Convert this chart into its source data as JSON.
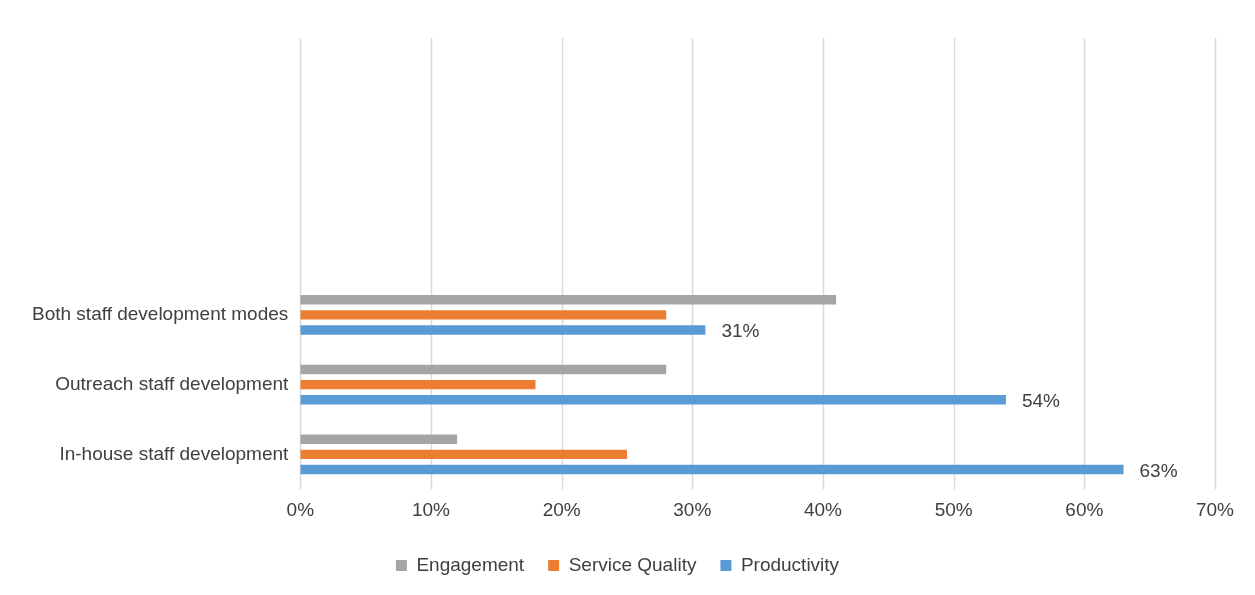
{
  "chart_data": {
    "type": "bar",
    "orientation": "horizontal",
    "categories": [
      "Both staff development modes",
      "Outreach staff development",
      "In-house staff development"
    ],
    "series": [
      {
        "name": "Engagement",
        "color": "#a5a5a5",
        "values": [
          41,
          28,
          12
        ]
      },
      {
        "name": "Service Quality",
        "color": "#ed7d31",
        "values": [
          28,
          18,
          25
        ]
      },
      {
        "name": "Productivity",
        "color": "#5b9bd5",
        "values": [
          31,
          54,
          63
        ],
        "value_labels": [
          "31%",
          "54%",
          "63%"
        ]
      }
    ],
    "xlim": [
      0,
      70
    ],
    "xticks": [
      {
        "value": 0,
        "label": "0%"
      },
      {
        "value": 10,
        "label": "10%"
      },
      {
        "value": 20,
        "label": "20%"
      },
      {
        "value": 30,
        "label": "30%"
      },
      {
        "value": 40,
        "label": "40%"
      },
      {
        "value": 50,
        "label": "50%"
      },
      {
        "value": 60,
        "label": "60%"
      },
      {
        "value": 70,
        "label": "70%"
      }
    ],
    "grid": "x",
    "legend": "bottom"
  }
}
